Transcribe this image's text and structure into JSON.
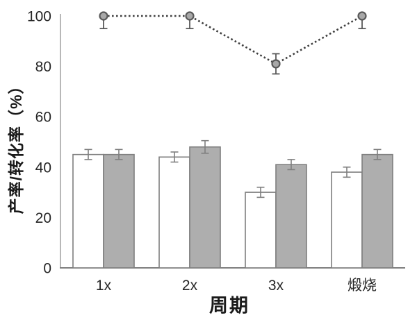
{
  "chart_data": {
    "type": "bar+line",
    "title": "",
    "xlabel": "周期",
    "ylabel": "产率/转化率（%）",
    "categories": [
      "1x",
      "2x",
      "3x",
      "煅烧"
    ],
    "series": [
      {
        "name": "white-bars",
        "type": "bar",
        "values": [
          45,
          44,
          30,
          38
        ],
        "errors": [
          2,
          2,
          2,
          2
        ],
        "fill": "#ffffff",
        "stroke": "#7f7f7f"
      },
      {
        "name": "gray-bars",
        "type": "bar",
        "values": [
          45,
          48,
          41,
          45
        ],
        "errors": [
          2,
          2.5,
          2,
          2
        ],
        "fill": "#aeaeae",
        "stroke": "#7f7f7f"
      },
      {
        "name": "dotted-line",
        "type": "line",
        "values": [
          100,
          100,
          81,
          100
        ],
        "errors": [
          5,
          5,
          4,
          5
        ],
        "stroke": "#3f3f3f",
        "marker_fill": "#a8a8a8",
        "marker_stroke": "#595959"
      }
    ],
    "ylim": [
      0,
      100
    ],
    "yticks": [
      0,
      20,
      40,
      60,
      80,
      100
    ],
    "grid": false,
    "legend": "none",
    "style": {
      "y_axis_color": "#a6a6a6",
      "x_axis_color": "#7f7f7f",
      "tick_label_color": "#262626",
      "bar_error_color": "#7f7f7f",
      "line_error_color": "#595959"
    }
  }
}
